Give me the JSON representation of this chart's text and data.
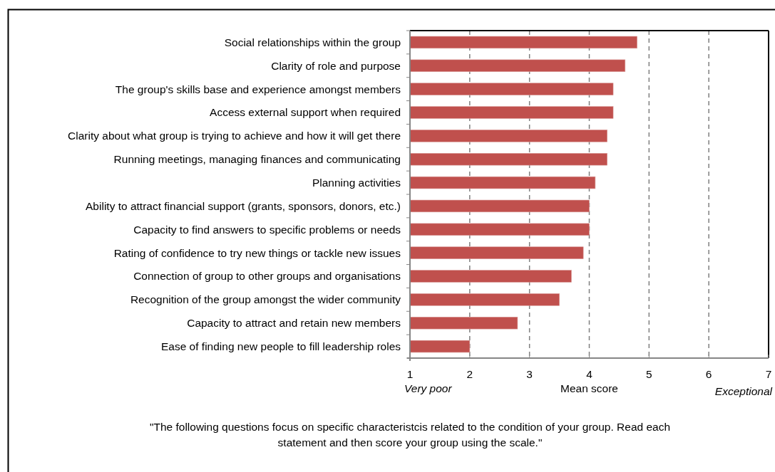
{
  "chart_data": {
    "type": "bar",
    "orientation": "horizontal",
    "categories": [
      "Social relationships within the group",
      "Clarity of role and purpose",
      "The group's skills base and experience amongst members",
      "Access external support when required",
      "Clarity about what group is trying to achieve and how it will get there",
      "Running meetings, managing finances and communicating",
      "Planning activities",
      "Ability to attract financial support (grants, sponsors, donors, etc.)",
      "Capacity to find answers to specific problems or needs",
      "Rating of confidence to try new things or tackle new issues",
      "Connection of group to other groups and organisations",
      "Recognition of the group amongst the wider community",
      "Capacity to attract and retain new members",
      "Ease of finding new people to fill leadership roles"
    ],
    "values": [
      4.8,
      4.6,
      4.4,
      4.4,
      4.3,
      4.3,
      4.1,
      4.0,
      4.0,
      3.9,
      3.7,
      3.5,
      2.8,
      2.0
    ],
    "color": "#c0504d",
    "xlim": [
      1,
      7
    ],
    "xticks": [
      1,
      2,
      3,
      4,
      5,
      6,
      7
    ],
    "grid": "x",
    "xlabel": "Mean score",
    "annotations": [
      "Very poor",
      "Exceptional",
      "\"The following questions focus on specific characteristcis related to the condition of your group. Read each statement and then score your group using the scale.\""
    ]
  }
}
